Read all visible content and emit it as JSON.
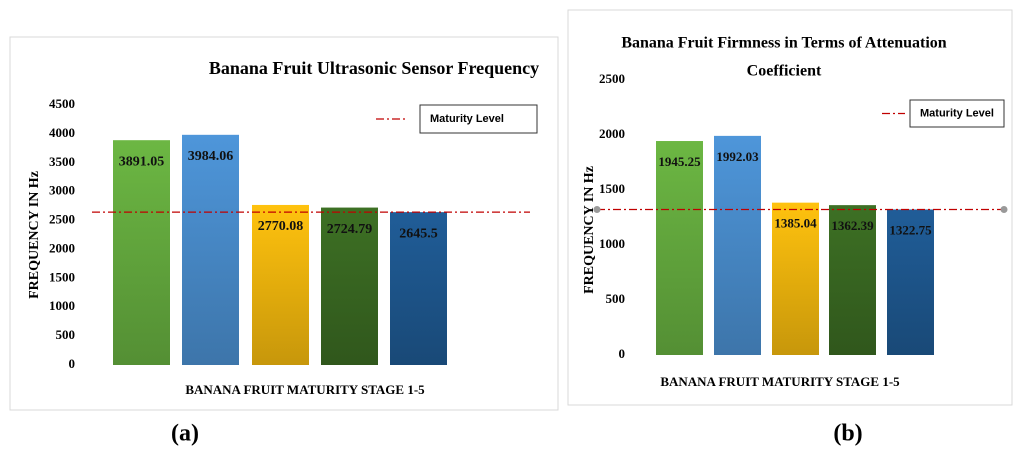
{
  "chart_data": [
    {
      "type": "bar",
      "title": "Banana Fruit Ultrasonic Sensor Frequency",
      "y_label": "FREQUENCY IN Hz",
      "x_label": "BANANA FRUIT MATURITY STAGE 1-5",
      "caption": "(a)",
      "categories": [
        null,
        null,
        null,
        null,
        null
      ],
      "values": [
        3891.05,
        3984.06,
        2770.08,
        2724.79,
        2645.5
      ],
      "colors": [
        "#6cb743",
        "#4e96da",
        "#ffc20e",
        "#3d7024",
        "#205d98"
      ],
      "ylim": [
        0,
        4500
      ],
      "yticks": [
        0,
        500,
        1000,
        1500,
        2000,
        2500,
        3000,
        3500,
        4000,
        4500
      ],
      "reference_line": {
        "name": "Maturity Level",
        "value": 2645.5,
        "color": "#c00000"
      }
    },
    {
      "type": "bar",
      "title": [
        "Banana Fruit Firmness in Terms  of Attenuation",
        "Coefficient"
      ],
      "y_label": "FREQUENCY IN Hz",
      "x_label": "BANANA FRUIT MATURITY STAGE 1-5",
      "caption": "(b)",
      "categories": [
        null,
        null,
        null,
        null,
        null
      ],
      "values": [
        1945.25,
        1992.03,
        1385.04,
        1362.39,
        1322.75
      ],
      "colors": [
        "#6cb743",
        "#4e96da",
        "#ffc20e",
        "#3d7024",
        "#205d98"
      ],
      "ylim": [
        0,
        2500
      ],
      "yticks": [
        0,
        500,
        1000,
        1500,
        2000,
        2500
      ],
      "reference_line": {
        "name": "Maturity Level",
        "value": 1322.75,
        "color": "#c00000"
      }
    }
  ]
}
